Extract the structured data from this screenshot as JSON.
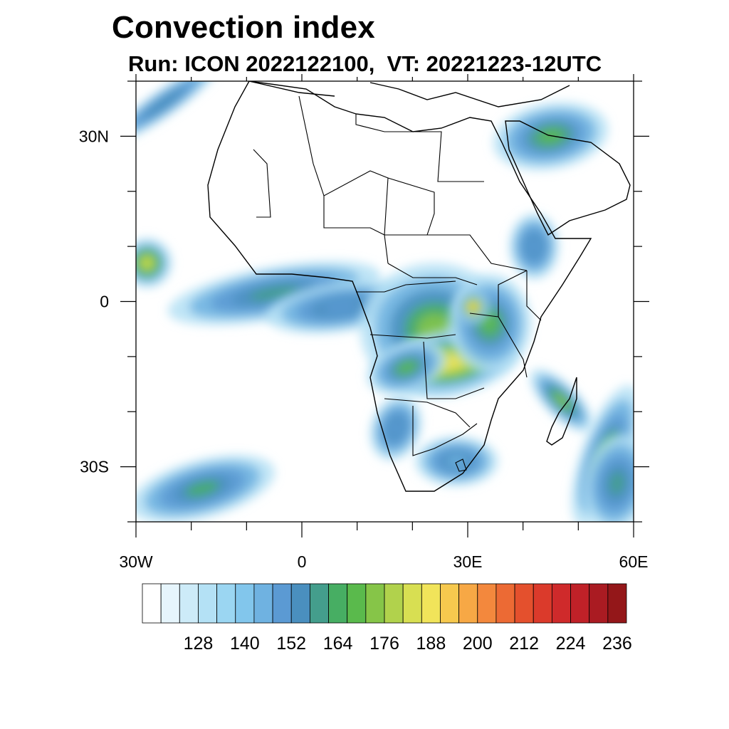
{
  "title": "Convection index",
  "subtitle": "Run: ICON 2022122100,  VT: 20221223-12UTC",
  "map": {
    "lon_range": [
      -30,
      60
    ],
    "lat_range": [
      -40,
      40
    ],
    "x_ticks": [
      {
        "lon": -30,
        "label": "30W"
      },
      {
        "lon": 0,
        "label": "0"
      },
      {
        "lon": 30,
        "label": "30E"
      },
      {
        "lon": 60,
        "label": "60E"
      }
    ],
    "y_ticks": [
      {
        "lat": 30,
        "label": "30N"
      },
      {
        "lat": 0,
        "label": "0"
      },
      {
        "lat": -30,
        "label": "30S"
      }
    ],
    "minor_lon_step": 10,
    "minor_lat_step": 10
  },
  "colorbar": {
    "colors": [
      "#ffffff",
      "#e6f5fc",
      "#cdebf8",
      "#b4e1f5",
      "#9bd6f2",
      "#82c6ec",
      "#6fb2e1",
      "#5b9ad3",
      "#4a8fbf",
      "#449e8c",
      "#47ae63",
      "#5aba4c",
      "#86c548",
      "#b1d24c",
      "#d8df52",
      "#f1e45a",
      "#f7c94e",
      "#f7a845",
      "#f3883d",
      "#ec6a34",
      "#e4502d",
      "#db3a2b",
      "#cf2a2b",
      "#c02128",
      "#aa1b22",
      "#941719"
    ],
    "labels": [
      "128",
      "140",
      "152",
      "164",
      "176",
      "188",
      "200",
      "212",
      "224",
      "236"
    ]
  },
  "regions": [
    {
      "name": "gulf-of-guinea-band",
      "lon": -5,
      "lat": 1.5,
      "rx": 13,
      "ry": 3.2,
      "rot": -10,
      "level": 9
    },
    {
      "name": "gulf-of-guinea-band-2",
      "lon": 7,
      "lat": -1,
      "rx": 9,
      "ry": 3,
      "rot": -8,
      "level": 7
    },
    {
      "name": "congo-basin",
      "lon": 24,
      "lat": -5,
      "rx": 9,
      "ry": 8,
      "rot": 0,
      "level": 12
    },
    {
      "name": "zambia-core",
      "lon": 27,
      "lat": -11,
      "rx": 8,
      "ry": 4,
      "rot": -10,
      "level": 15
    },
    {
      "name": "angola-band",
      "lon": 19,
      "lat": -12,
      "rx": 5,
      "ry": 3,
      "rot": -20,
      "level": 11
    },
    {
      "name": "east-africa",
      "lon": 34,
      "lat": -4,
      "rx": 5,
      "ry": 6,
      "rot": 0,
      "level": 11
    },
    {
      "name": "lake-victoria",
      "lon": 31,
      "lat": -1,
      "rx": 2,
      "ry": 2,
      "rot": 0,
      "level": 16
    },
    {
      "name": "mozambique-channel",
      "lon": 47,
      "lat": -18,
      "rx": 5,
      "ry": 2,
      "rot": 45,
      "level": 12
    },
    {
      "name": "madagascar-east",
      "lon": 55,
      "lat": -28,
      "rx": 3,
      "ry": 9,
      "rot": 20,
      "level": 11
    },
    {
      "name": "southeast-indian",
      "lon": 57,
      "lat": -33,
      "rx": 4,
      "ry": 6,
      "rot": 10,
      "level": 9
    },
    {
      "name": "south-atlantic-low",
      "lon": -18,
      "lat": -34,
      "rx": 9,
      "ry": 3.5,
      "rot": -15,
      "level": 10
    },
    {
      "name": "saudi-north",
      "lon": 45,
      "lat": 30,
      "rx": 7,
      "ry": 4,
      "rot": -10,
      "level": 11
    },
    {
      "name": "north-atlantic-band",
      "lon": -25,
      "lat": 36,
      "rx": 8,
      "ry": 1.6,
      "rot": -35,
      "level": 8
    },
    {
      "name": "west-atlantic-10n",
      "lon": -28,
      "lat": 7,
      "rx": 3,
      "ry": 3,
      "rot": 0,
      "level": 14
    },
    {
      "name": "ethiopia",
      "lon": 42,
      "lat": 10,
      "rx": 3,
      "ry": 4,
      "rot": 0,
      "level": 7
    },
    {
      "name": "south-africa",
      "lon": 28,
      "lat": -29,
      "rx": 5,
      "ry": 3,
      "rot": 0,
      "level": 6
    },
    {
      "name": "namibia",
      "lon": 17,
      "lat": -23,
      "rx": 3,
      "ry": 4,
      "rot": 20,
      "level": 7
    }
  ]
}
